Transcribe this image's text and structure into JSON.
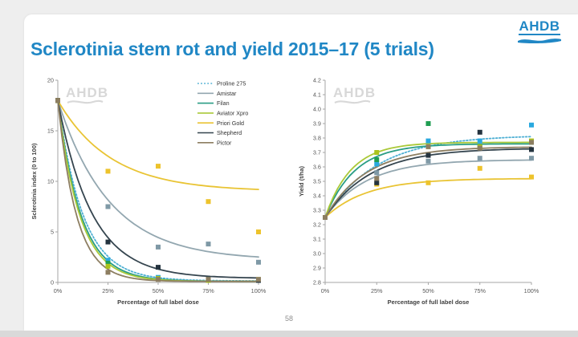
{
  "slide": {
    "title": "Sclerotinia stem rot and yield 2015–17 (5 trials)",
    "logo_text": "AHDB",
    "watermark_text": "AHDB",
    "page_number": "58",
    "accent_color": "#2087c5"
  },
  "chart_data": [
    {
      "type": "scatter",
      "title": "",
      "xlabel": "Percentage of full label dose",
      "ylabel": "Sclerotinia index (0 to 100)",
      "x": [
        0,
        25,
        50,
        75,
        100
      ],
      "x_ticks": [
        "0%",
        "25%",
        "50%",
        "75%",
        "100%"
      ],
      "ylim": [
        0,
        20
      ],
      "y_tick_step": 5,
      "y_decimals": 0,
      "grid": false,
      "legend_visible": true,
      "legend_position": "top-right-inside",
      "curve_model": "exponential-toward-asymptote",
      "series": [
        {
          "name": "Proline 275",
          "color": "#4fb0d4",
          "marker_color": "#2aa9df",
          "dashed": true,
          "values": [
            18,
            2.2,
            0.5,
            0.3,
            0.2
          ],
          "fit": {
            "asym": 0.15,
            "k": 8.0
          }
        },
        {
          "name": "Amistar",
          "color": "#93a7b0",
          "marker_color": "#7f99a6",
          "dashed": false,
          "values": [
            18,
            7.5,
            3.5,
            3.8,
            2.0
          ],
          "fit": {
            "asym": 2.2,
            "k": 3.9
          }
        },
        {
          "name": "Filan",
          "color": "#2a9d85",
          "marker_color": "#1f9e52",
          "dashed": false,
          "values": [
            18,
            1.9,
            0.4,
            0.3,
            0.2
          ],
          "fit": {
            "asym": 0.1,
            "k": 8.7
          }
        },
        {
          "name": "Aviator Xpro",
          "color": "#aac938",
          "marker_color": "#abc31c",
          "dashed": false,
          "values": [
            18,
            1.6,
            0.4,
            0.2,
            0.3
          ],
          "fit": {
            "asym": 0.1,
            "k": 9.2
          }
        },
        {
          "name": "Priori Gold",
          "color": "#e9c434",
          "marker_color": "#edc32c",
          "dashed": false,
          "values": [
            18,
            11.0,
            11.5,
            8.0,
            5.0
          ],
          "fit": {
            "asym": 9.0,
            "k": 3.8
          }
        },
        {
          "name": "Shepherd",
          "color": "#35454f",
          "marker_color": "#24333f",
          "dashed": false,
          "values": [
            18,
            4.0,
            1.5,
            0.3,
            0.2
          ],
          "fit": {
            "asym": 0.4,
            "k": 5.9
          }
        },
        {
          "name": "Pictor",
          "color": "#8d7e61",
          "marker_color": "#8d7e61",
          "dashed": false,
          "values": [
            18,
            1.0,
            0.3,
            0.3,
            0.3
          ],
          "fit": {
            "asym": 0.1,
            "k": 10.8
          }
        }
      ]
    },
    {
      "type": "scatter",
      "title": "",
      "xlabel": "Percentage of full label dose",
      "ylabel": "Yield (t/ha)",
      "x": [
        0,
        25,
        50,
        75,
        100
      ],
      "x_ticks": [
        "0%",
        "25%",
        "50%",
        "75%",
        "100%"
      ],
      "ylim": [
        2.8,
        4.2
      ],
      "y_tick_step": 0.1,
      "y_decimals": 1,
      "grid": false,
      "legend_visible": false,
      "curve_model": "exponential-toward-asymptote",
      "series": [
        {
          "name": "Proline 275",
          "color": "#4fb0d4",
          "marker_color": "#2aa9df",
          "dashed": true,
          "values": [
            3.25,
            3.62,
            3.78,
            3.78,
            3.89
          ],
          "fit": {
            "asym": 3.82,
            "k": 4.0
          }
        },
        {
          "name": "Amistar",
          "color": "#93a7b0",
          "marker_color": "#7f99a6",
          "dashed": false,
          "values": [
            3.25,
            3.56,
            3.64,
            3.66,
            3.66
          ],
          "fit": {
            "asym": 3.65,
            "k": 5.0
          }
        },
        {
          "name": "Filan",
          "color": "#2a9d85",
          "marker_color": "#1f9e52",
          "dashed": false,
          "values": [
            3.25,
            3.65,
            3.9,
            3.74,
            3.77
          ],
          "fit": {
            "asym": 3.76,
            "k": 7.0
          }
        },
        {
          "name": "Aviator Xpro",
          "color": "#aac938",
          "marker_color": "#abc31c",
          "dashed": false,
          "values": [
            3.25,
            3.7,
            3.74,
            3.74,
            3.78
          ],
          "fit": {
            "asym": 3.77,
            "k": 8.0
          }
        },
        {
          "name": "Priori Gold",
          "color": "#e9c434",
          "marker_color": "#edc32c",
          "dashed": false,
          "values": [
            3.25,
            3.48,
            3.49,
            3.59,
            3.53
          ],
          "fit": {
            "asym": 3.52,
            "k": 5.0
          }
        },
        {
          "name": "Shepherd",
          "color": "#35454f",
          "marker_color": "#24333f",
          "dashed": false,
          "values": [
            3.25,
            3.49,
            3.68,
            3.84,
            3.72
          ],
          "fit": {
            "asym": 3.73,
            "k": 4.5
          }
        },
        {
          "name": "Pictor",
          "color": "#8d7e61",
          "marker_color": "#8d7e61",
          "dashed": false,
          "values": [
            3.25,
            3.52,
            3.74,
            3.73,
            3.77
          ],
          "fit": {
            "asym": 3.74,
            "k": 5.0
          }
        }
      ]
    }
  ]
}
